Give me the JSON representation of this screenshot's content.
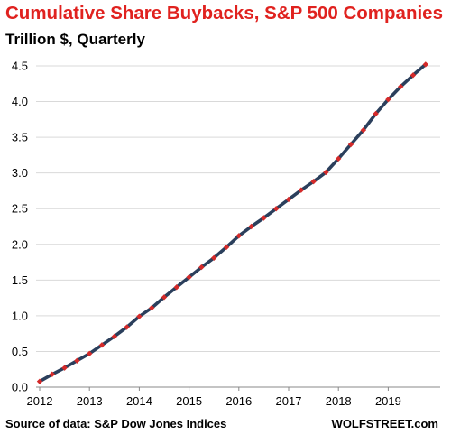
{
  "header": {
    "title": "Cumulative Share Buybacks, S&P 500 Companies",
    "subtitle": "Trillion $, Quarterly"
  },
  "footer": {
    "source": "Source of data: S&P Dow Jones Indices",
    "brand": "WOLFSTREET.com"
  },
  "colors": {
    "title": "#e0221f",
    "line": "#2b3f5c",
    "marker": "#d42a2a",
    "grid": "#d9d9d9",
    "axis": "#888888"
  },
  "chart_data": {
    "type": "line",
    "title": "Cumulative Share Buybacks, S&P 500 Companies",
    "subtitle": "Trillion $, Quarterly",
    "xlabel": "",
    "ylabel": "",
    "ylim": [
      0,
      4.5
    ],
    "y_ticks": [
      "0.0",
      "0.5",
      "1.0",
      "1.5",
      "2.0",
      "2.5",
      "3.0",
      "3.5",
      "4.0",
      "4.5"
    ],
    "x_ticks": [
      "2012",
      "2013",
      "2014",
      "2015",
      "2016",
      "2017",
      "2018",
      "2019"
    ],
    "grid": "horizontal",
    "legend": "none",
    "x": [
      "2012-Q1",
      "2012-Q2",
      "2012-Q3",
      "2012-Q4",
      "2013-Q1",
      "2013-Q2",
      "2013-Q3",
      "2013-Q4",
      "2014-Q1",
      "2014-Q2",
      "2014-Q3",
      "2014-Q4",
      "2015-Q1",
      "2015-Q2",
      "2015-Q3",
      "2015-Q4",
      "2016-Q1",
      "2016-Q2",
      "2016-Q3",
      "2016-Q4",
      "2017-Q1",
      "2017-Q2",
      "2017-Q3",
      "2017-Q4",
      "2018-Q1",
      "2018-Q2",
      "2018-Q3",
      "2018-Q4",
      "2019-Q1",
      "2019-Q2",
      "2019-Q3",
      "2019-Q4"
    ],
    "series": [
      {
        "values": [
          0.08,
          0.18,
          0.27,
          0.37,
          0.47,
          0.59,
          0.71,
          0.84,
          0.99,
          1.11,
          1.26,
          1.4,
          1.54,
          1.68,
          1.81,
          1.96,
          2.12,
          2.25,
          2.37,
          2.5,
          2.63,
          2.76,
          2.88,
          3.01,
          3.2,
          3.4,
          3.6,
          3.83,
          4.03,
          4.21,
          4.37,
          4.52
        ]
      }
    ]
  }
}
